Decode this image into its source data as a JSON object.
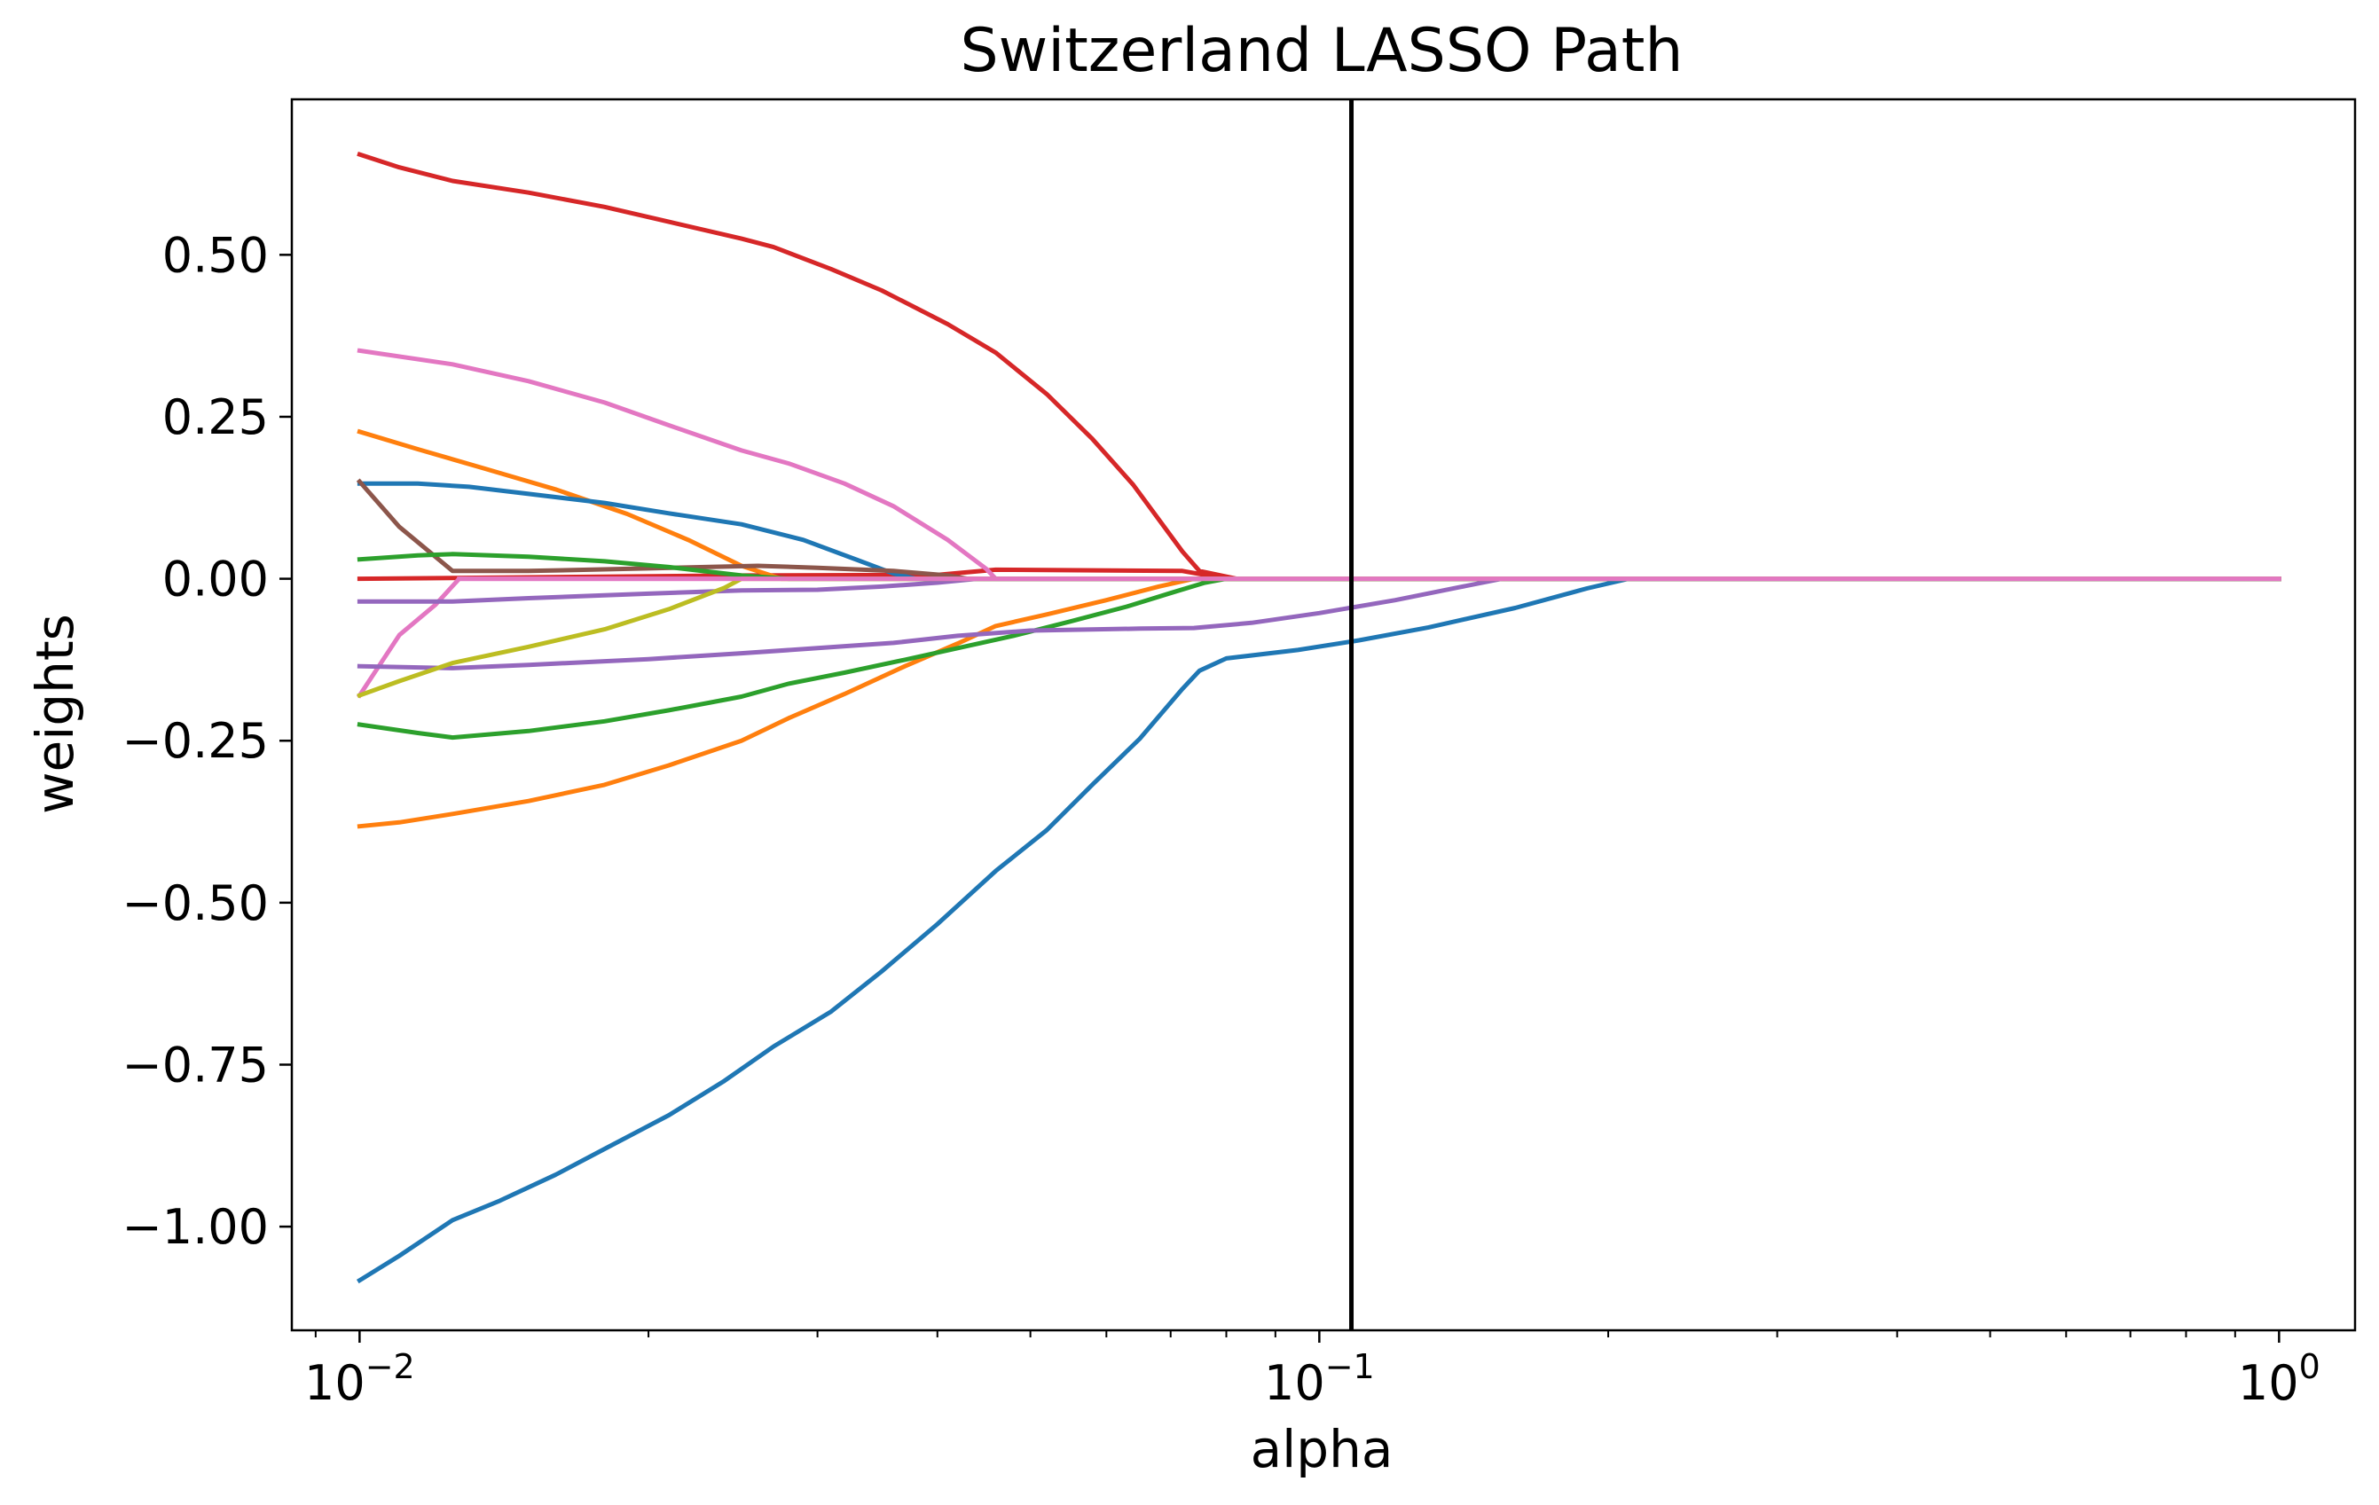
{
  "chart_data": {
    "type": "line",
    "title": "Switzerland LASSO Path",
    "xlabel": "alpha",
    "ylabel": "weights",
    "xscale": "log",
    "xlim": [
      0.0085,
      1.2
    ],
    "ylim": [
      -1.16,
      0.74
    ],
    "grid": false,
    "x_ticks": [
      {
        "value": 0.01,
        "base": "10",
        "exp": "−2"
      },
      {
        "value": 0.1,
        "base": "10",
        "exp": "−1"
      },
      {
        "value": 1,
        "base": "10",
        "exp": "0"
      }
    ],
    "y_ticks": [
      {
        "value": 0.5,
        "label": "0.50"
      },
      {
        "value": 0.25,
        "label": "0.25"
      },
      {
        "value": 0,
        "label": "0.00"
      },
      {
        "value": -0.25,
        "label": "−0.25"
      },
      {
        "value": -0.5,
        "label": "−0.50"
      },
      {
        "value": -0.75,
        "label": "−0.75"
      },
      {
        "value": -1.0,
        "label": "−1.00"
      }
    ],
    "vline": {
      "x": 0.108,
      "color": "#000000"
    },
    "series": [
      {
        "color": "#d62728",
        "points": [
          [
            0.01,
            0.655
          ],
          [
            0.011,
            0.635
          ],
          [
            0.0125,
            0.614
          ],
          [
            0.015,
            0.596
          ],
          [
            0.018,
            0.574
          ],
          [
            0.021,
            0.551
          ],
          [
            0.025,
            0.525
          ],
          [
            0.027,
            0.512
          ],
          [
            0.031,
            0.478
          ],
          [
            0.035,
            0.445
          ],
          [
            0.041,
            0.393
          ],
          [
            0.046,
            0.349
          ],
          [
            0.052,
            0.285
          ],
          [
            0.058,
            0.216
          ],
          [
            0.064,
            0.145
          ],
          [
            0.072,
            0.042
          ],
          [
            0.075,
            0.012
          ],
          [
            0.082,
            0.0
          ],
          [
            1.0,
            0.0
          ]
        ]
      },
      {
        "color": "#d62728",
        "points": [
          [
            0.01,
            0.0
          ],
          [
            0.025,
            0.005
          ],
          [
            0.04,
            0.006
          ],
          [
            0.046,
            0.014
          ],
          [
            0.072,
            0.012
          ],
          [
            0.08,
            0.0
          ],
          [
            1.0,
            0.0
          ]
        ]
      },
      {
        "color": "#e377c2",
        "points": [
          [
            0.01,
            0.352
          ],
          [
            0.0125,
            0.331
          ],
          [
            0.015,
            0.305
          ],
          [
            0.018,
            0.272
          ],
          [
            0.021,
            0.237
          ],
          [
            0.025,
            0.198
          ],
          [
            0.028,
            0.178
          ],
          [
            0.032,
            0.147
          ],
          [
            0.036,
            0.112
          ],
          [
            0.041,
            0.06
          ],
          [
            0.045,
            0.015
          ],
          [
            0.046,
            0.0
          ],
          [
            1.0,
            0.0
          ]
        ]
      },
      {
        "color": "#e377c2",
        "points": [
          [
            0.01,
            -0.18
          ],
          [
            0.011,
            -0.087
          ],
          [
            0.012,
            -0.04
          ],
          [
            0.0127,
            0.0
          ],
          [
            1.0,
            0.0
          ]
        ]
      },
      {
        "color": "#ff7f0e",
        "points": [
          [
            0.01,
            0.227
          ],
          [
            0.0115,
            0.2
          ],
          [
            0.0135,
            0.17
          ],
          [
            0.016,
            0.138
          ],
          [
            0.019,
            0.1
          ],
          [
            0.022,
            0.06
          ],
          [
            0.025,
            0.02
          ],
          [
            0.0275,
            0.0
          ],
          [
            1.0,
            0.0
          ]
        ]
      },
      {
        "color": "#ff7f0e",
        "points": [
          [
            0.01,
            -0.382
          ],
          [
            0.011,
            -0.376
          ],
          [
            0.0125,
            -0.363
          ],
          [
            0.015,
            -0.343
          ],
          [
            0.018,
            -0.318
          ],
          [
            0.021,
            -0.288
          ],
          [
            0.025,
            -0.25
          ],
          [
            0.028,
            -0.215
          ],
          [
            0.032,
            -0.178
          ],
          [
            0.037,
            -0.135
          ],
          [
            0.042,
            -0.1
          ],
          [
            0.046,
            -0.073
          ],
          [
            0.052,
            -0.055
          ],
          [
            0.06,
            -0.033
          ],
          [
            0.068,
            -0.012
          ],
          [
            0.074,
            0.0
          ],
          [
            1.0,
            0.0
          ]
        ]
      },
      {
        "color": "#1f77b4",
        "points": [
          [
            0.01,
            0.147
          ],
          [
            0.0115,
            0.147
          ],
          [
            0.013,
            0.142
          ],
          [
            0.015,
            0.131
          ],
          [
            0.018,
            0.117
          ],
          [
            0.021,
            0.101
          ],
          [
            0.025,
            0.084
          ],
          [
            0.029,
            0.06
          ],
          [
            0.033,
            0.029
          ],
          [
            0.036,
            0.008
          ],
          [
            0.038,
            0.0
          ],
          [
            1.0,
            0.0
          ]
        ]
      },
      {
        "color": "#1f77b4",
        "points": [
          [
            0.01,
            -1.083
          ],
          [
            0.011,
            -1.045
          ],
          [
            0.0125,
            -0.99
          ],
          [
            0.014,
            -0.96
          ],
          [
            0.016,
            -0.92
          ],
          [
            0.018,
            -0.88
          ],
          [
            0.021,
            -0.828
          ],
          [
            0.024,
            -0.775
          ],
          [
            0.027,
            -0.722
          ],
          [
            0.031,
            -0.668
          ],
          [
            0.035,
            -0.606
          ],
          [
            0.04,
            -0.533
          ],
          [
            0.046,
            -0.451
          ],
          [
            0.052,
            -0.388
          ],
          [
            0.058,
            -0.318
          ],
          [
            0.065,
            -0.247
          ],
          [
            0.072,
            -0.17
          ],
          [
            0.075,
            -0.142
          ],
          [
            0.08,
            -0.123
          ],
          [
            0.095,
            -0.11
          ],
          [
            0.11,
            -0.095
          ],
          [
            0.13,
            -0.075
          ],
          [
            0.16,
            -0.045
          ],
          [
            0.19,
            -0.015
          ],
          [
            0.21,
            0.0
          ],
          [
            1.0,
            0.0
          ]
        ]
      },
      {
        "color": "#8c564b",
        "points": [
          [
            0.01,
            0.15
          ],
          [
            0.011,
            0.08
          ],
          [
            0.0125,
            0.012
          ],
          [
            0.015,
            0.012
          ],
          [
            0.02,
            0.016
          ],
          [
            0.026,
            0.02
          ],
          [
            0.03,
            0.017
          ],
          [
            0.036,
            0.012
          ],
          [
            0.041,
            0.005
          ],
          [
            0.043,
            0.0
          ],
          [
            1.0,
            0.0
          ]
        ]
      },
      {
        "color": "#2ca02c",
        "points": [
          [
            0.01,
            0.03
          ],
          [
            0.0115,
            0.036
          ],
          [
            0.0125,
            0.038
          ],
          [
            0.015,
            0.034
          ],
          [
            0.018,
            0.027
          ],
          [
            0.021,
            0.018
          ],
          [
            0.025,
            0.005
          ],
          [
            0.028,
            0.0
          ],
          [
            1.0,
            0.0
          ]
        ]
      },
      {
        "color": "#2ca02c",
        "points": [
          [
            0.01,
            -0.225
          ],
          [
            0.0115,
            -0.238
          ],
          [
            0.0125,
            -0.245
          ],
          [
            0.015,
            -0.235
          ],
          [
            0.018,
            -0.22
          ],
          [
            0.021,
            -0.203
          ],
          [
            0.025,
            -0.182
          ],
          [
            0.028,
            -0.162
          ],
          [
            0.032,
            -0.145
          ],
          [
            0.037,
            -0.125
          ],
          [
            0.042,
            -0.107
          ],
          [
            0.048,
            -0.088
          ],
          [
            0.055,
            -0.066
          ],
          [
            0.063,
            -0.043
          ],
          [
            0.07,
            -0.022
          ],
          [
            0.076,
            -0.006
          ],
          [
            0.08,
            0.0
          ],
          [
            1.0,
            0.0
          ]
        ]
      },
      {
        "color": "#9467bd",
        "points": [
          [
            0.01,
            -0.135
          ],
          [
            0.0125,
            -0.138
          ],
          [
            0.015,
            -0.133
          ],
          [
            0.02,
            -0.124
          ],
          [
            0.025,
            -0.115
          ],
          [
            0.03,
            -0.107
          ],
          [
            0.036,
            -0.099
          ],
          [
            0.042,
            -0.088
          ],
          [
            0.05,
            -0.08
          ],
          [
            0.065,
            -0.077
          ],
          [
            0.074,
            -0.076
          ],
          [
            0.085,
            -0.068
          ],
          [
            0.1,
            -0.053
          ],
          [
            0.12,
            -0.033
          ],
          [
            0.14,
            -0.013
          ],
          [
            0.155,
            0.0
          ],
          [
            1.0,
            0.0
          ]
        ]
      },
      {
        "color": "#9467bd",
        "points": [
          [
            0.01,
            -0.035
          ],
          [
            0.0125,
            -0.035
          ],
          [
            0.015,
            -0.03
          ],
          [
            0.02,
            -0.023
          ],
          [
            0.025,
            -0.018
          ],
          [
            0.03,
            -0.017
          ],
          [
            0.035,
            -0.012
          ],
          [
            0.04,
            -0.006
          ],
          [
            0.044,
            0.0
          ],
          [
            1.0,
            0.0
          ]
        ]
      },
      {
        "color": "#bcbd22",
        "points": [
          [
            0.01,
            -0.18
          ],
          [
            0.011,
            -0.158
          ],
          [
            0.0125,
            -0.13
          ],
          [
            0.015,
            -0.105
          ],
          [
            0.018,
            -0.078
          ],
          [
            0.021,
            -0.047
          ],
          [
            0.024,
            -0.014
          ],
          [
            0.025,
            0.0
          ],
          [
            1.0,
            0.0
          ]
        ]
      },
      {
        "color": "#e377c2",
        "points": [
          [
            0.0127,
            0.0
          ],
          [
            1.0,
            0.0
          ]
        ]
      }
    ]
  }
}
